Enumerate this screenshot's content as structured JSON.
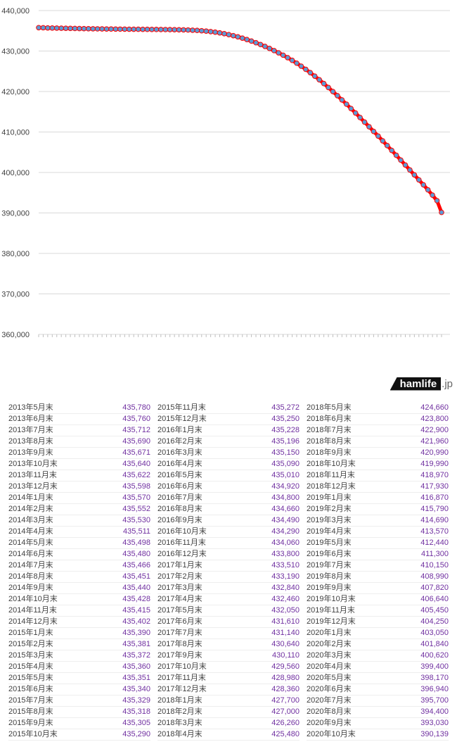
{
  "chart_data": {
    "type": "line",
    "title": "",
    "xlabel": "",
    "ylabel": "",
    "ylim": [
      360000,
      440000
    ],
    "yticks": [
      "360,000",
      "370,000",
      "380,000",
      "390,000",
      "400,000",
      "410,000",
      "420,000",
      "430,000",
      "440,000"
    ],
    "grid": true,
    "legend": "none",
    "data_labels": true,
    "colors": {
      "line": "#ff0000",
      "marker": "#5b9bd5",
      "data_label": "#7030a0",
      "grid": "#d9d9d9"
    },
    "categories": [
      "2013年5月末",
      "2013年6月末",
      "2013年7月末",
      "2013年8月末",
      "2013年9月末",
      "2013年10月末",
      "2013年11月末",
      "2013年12月末",
      "2014年1月末",
      "2014年2月末",
      "2014年3月末",
      "2014年4月末",
      "2014年5月末",
      "2014年6月末",
      "2014年7月末",
      "2014年8月末",
      "2014年9月末",
      "2014年10月末",
      "2014年11月末",
      "2014年12月末",
      "2015年1月末",
      "2015年2月末",
      "2015年3月末",
      "2015年4月末",
      "2015年5月末",
      "2015年6月末",
      "2015年7月末",
      "2015年8月末",
      "2015年9月末",
      "2015年10月末",
      "2015年11月末",
      "2015年12月末",
      "2016年1月末",
      "2016年2月末",
      "2016年3月末",
      "2016年4月末",
      "2016年5月末",
      "2016年6月末",
      "2016年7月末",
      "2016年8月末",
      "2016年9月末",
      "2016年10月末",
      "2016年11月末",
      "2016年12月末",
      "2017年1月末",
      "2017年2月末",
      "2017年3月末",
      "2017年4月末",
      "2017年5月末",
      "2017年6月末",
      "2017年7月末",
      "2017年8月末",
      "2017年9月末",
      "2017年10月末",
      "2017年11月末",
      "2017年12月末",
      "2018年1月末",
      "2018年2月末",
      "2018年3月末",
      "2018年4月末",
      "2018年5月末",
      "2018年6月末",
      "2018年7月末",
      "2018年8月末",
      "2018年9月末",
      "2018年10月末",
      "2018年11月末",
      "2018年12月末",
      "2019年1月末",
      "2019年2月末",
      "2019年3月末",
      "2019年4月末",
      "2019年5月末",
      "2019年6月末",
      "2019年7月末",
      "2019年8月末",
      "2019年9月末",
      "2019年10月末",
      "2019年11月末",
      "2019年12月末",
      "2020年1月末",
      "2020年2月末",
      "2020年3月末",
      "2020年4月末",
      "2020年5月末",
      "2020年6月末",
      "2020年7月末",
      "2020年8月末",
      "2020年9月末",
      "2020年10月末"
    ],
    "values": [
      435780,
      435760,
      435712,
      435690,
      435671,
      435640,
      435622,
      435598,
      435570,
      435552,
      435530,
      435511,
      435498,
      435480,
      435466,
      435451,
      435440,
      435428,
      435415,
      435402,
      435390,
      435381,
      435372,
      435360,
      435351,
      435340,
      435329,
      435318,
      435305,
      435290,
      435272,
      435250,
      435228,
      435196,
      435150,
      435090,
      435010,
      434920,
      434800,
      434660,
      434490,
      434290,
      434060,
      433800,
      433510,
      433190,
      432840,
      432460,
      432050,
      431610,
      431140,
      430640,
      430110,
      429560,
      428980,
      428360,
      427700,
      427000,
      426260,
      425480,
      424660,
      423800,
      422900,
      421960,
      420990,
      419990,
      418970,
      417930,
      416870,
      415790,
      414690,
      413570,
      412440,
      411300,
      410150,
      408990,
      407820,
      406640,
      405450,
      404250,
      403050,
      401840,
      400620,
      399400,
      398170,
      396940,
      395700,
      394400,
      393030,
      390139
    ]
  },
  "watermark": {
    "brand": "hamlife",
    "suffix": ".jp"
  }
}
